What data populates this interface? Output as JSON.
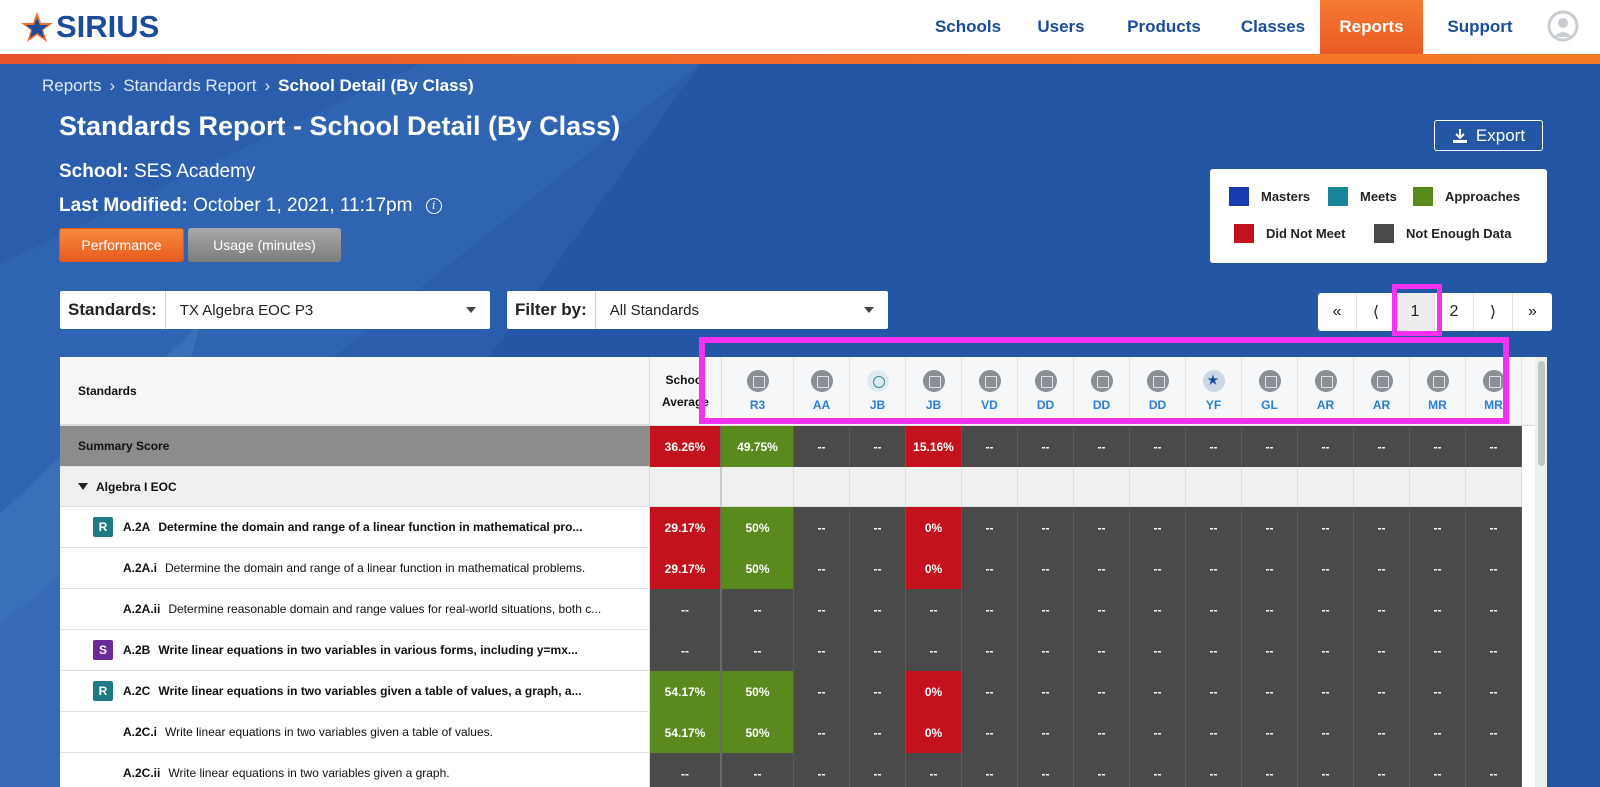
{
  "nav": {
    "brand": "SIRIUS",
    "items": [
      {
        "label": "Schools"
      },
      {
        "label": "Users"
      },
      {
        "label": "Products"
      },
      {
        "label": "Classes"
      },
      {
        "label": "Reports",
        "active": true
      },
      {
        "label": "Support"
      }
    ]
  },
  "breadcrumb": [
    "Reports",
    "Standards Report",
    "School Detail (By Class)"
  ],
  "page": {
    "title": "Standards Report - School Detail (By Class)",
    "school_label": "School:",
    "school_value": "SES Academy",
    "modified_label": "Last Modified:",
    "modified_value": "October 1, 2021, 11:17pm",
    "tab_performance": "Performance",
    "tab_usage": "Usage (minutes)",
    "export_label": "Export"
  },
  "legend": {
    "items": [
      {
        "label": "Masters",
        "color": "#1a3bb0"
      },
      {
        "label": "Meets",
        "color": "#16859a"
      },
      {
        "label": "Approaches",
        "color": "#5a8a1e"
      },
      {
        "label": "Did Not Meet",
        "color": "#c4111e"
      },
      {
        "label": "Not Enough Data",
        "color": "#4a4a4a"
      }
    ]
  },
  "filters": {
    "standards_label": "Standards:",
    "standards_value": "TX Algebra EOC P3",
    "filter_label": "Filter by:",
    "filter_value": "All Standards"
  },
  "pager": {
    "first": "«",
    "prev": "⟨",
    "pages": [
      "1",
      "2"
    ],
    "current": "1",
    "next": "⟩",
    "last": "»"
  },
  "table": {
    "header_standards": "Standards",
    "header_avg_line1": "School",
    "header_avg_line2": "Average",
    "classes": [
      "R3",
      "AA",
      "JB",
      "JB",
      "VD",
      "DD",
      "DD",
      "DD",
      "YF",
      "GL",
      "AR",
      "AR",
      "MR",
      "MR"
    ],
    "summary_label": "Summary Score",
    "summary": {
      "avg": "36.26%",
      "values": [
        "49.75%",
        "--",
        "--",
        "15.16%",
        "--",
        "--",
        "--",
        "--",
        "--",
        "--",
        "--",
        "--",
        "--",
        "--"
      ]
    },
    "group_label": "Algebra I EOC",
    "rows": [
      {
        "badge": "R",
        "code": "A.2A",
        "desc": "Determine the domain and range of a linear function in mathematical pro...",
        "bold": true,
        "avg": "29.17%",
        "values": [
          "50%",
          "--",
          "--",
          "0%",
          "--",
          "--",
          "--",
          "--",
          "--",
          "--",
          "--",
          "--",
          "--",
          "--"
        ]
      },
      {
        "badge": "",
        "code": "A.2A.i",
        "desc": "Determine the domain and range of a linear function in mathematical problems.",
        "bold": false,
        "avg": "29.17%",
        "values": [
          "50%",
          "--",
          "--",
          "0%",
          "--",
          "--",
          "--",
          "--",
          "--",
          "--",
          "--",
          "--",
          "--",
          "--"
        ]
      },
      {
        "badge": "",
        "code": "A.2A.ii",
        "desc": "Determine reasonable domain and range values for real-world situations, both c...",
        "bold": false,
        "avg": "--",
        "values": [
          "--",
          "--",
          "--",
          "--",
          "--",
          "--",
          "--",
          "--",
          "--",
          "--",
          "--",
          "--",
          "--",
          "--"
        ]
      },
      {
        "badge": "S",
        "code": "A.2B",
        "desc": "Write linear equations in two variables in various forms, including y=mx...",
        "bold": true,
        "avg": "--",
        "values": [
          "--",
          "--",
          "--",
          "--",
          "--",
          "--",
          "--",
          "--",
          "--",
          "--",
          "--",
          "--",
          "--",
          "--"
        ]
      },
      {
        "badge": "R",
        "code": "A.2C",
        "desc": "Write linear equations in two variables given a table of values, a graph, a...",
        "bold": true,
        "avg": "54.17%",
        "values": [
          "50%",
          "--",
          "--",
          "0%",
          "--",
          "--",
          "--",
          "--",
          "--",
          "--",
          "--",
          "--",
          "--",
          "--"
        ]
      },
      {
        "badge": "",
        "code": "A.2C.i",
        "desc": "Write linear equations in two variables given a table of values.",
        "bold": false,
        "avg": "54.17%",
        "values": [
          "50%",
          "--",
          "--",
          "0%",
          "--",
          "--",
          "--",
          "--",
          "--",
          "--",
          "--",
          "--",
          "--",
          "--"
        ]
      },
      {
        "badge": "",
        "code": "A.2C.ii",
        "desc": "Write linear equations in two variables given a graph.",
        "bold": false,
        "avg": "--",
        "values": [
          "--",
          "--",
          "--",
          "--",
          "--",
          "--",
          "--",
          "--",
          "--",
          "--",
          "--",
          "--",
          "--",
          "--"
        ]
      }
    ]
  },
  "colors": {
    "red": "#c4111e",
    "green": "#5a8a1e",
    "dark": "#4a4a4a",
    "orange": "#f26b2b",
    "navy": "#1b4c99"
  }
}
